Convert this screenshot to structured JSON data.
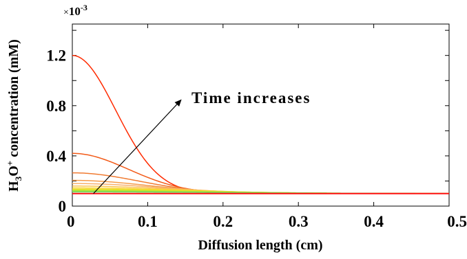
{
  "chart_data": {
    "type": "line",
    "xlabel": "Diffusion length (cm)",
    "ylabel": "H3O+ concentration (mM)",
    "ylabel_parts": {
      "h": "H",
      "sub": "3",
      "o": "O",
      "sup": "+",
      "rest": " concentration (mM)"
    },
    "y_multiplier": "×10-3",
    "y_multiplier_parts": {
      "times": "×",
      "base": "10",
      "exp": "-3"
    },
    "xlim": [
      0,
      0.5
    ],
    "ylim": [
      0,
      1.45
    ],
    "x_ticks": [
      0,
      0.1,
      0.2,
      0.3,
      0.4,
      0.5
    ],
    "x_tick_labels": [
      "0",
      "0.1",
      "0.2",
      "0.3",
      "0.4",
      "0.5"
    ],
    "y_ticks": [
      0,
      0.4,
      0.8,
      1.2
    ],
    "y_tick_labels": [
      "0",
      "0.4",
      "0.8",
      "1.2"
    ],
    "baseline": 0.1,
    "annotation": {
      "text": "Time increases",
      "arrow_from": [
        0.028,
        0.1
      ],
      "arrow_to": [
        0.145,
        0.85
      ]
    },
    "series": [
      {
        "peak": 1.2,
        "width": 0.085,
        "color": "#ff2a00"
      },
      {
        "peak": 0.42,
        "width": 0.11,
        "color": "#f25a18"
      },
      {
        "peak": 0.265,
        "width": 0.13,
        "color": "#f07a30"
      },
      {
        "peak": 0.205,
        "width": 0.15,
        "color": "#f59b4a"
      },
      {
        "peak": 0.18,
        "width": 0.17,
        "color": "#f8b06a"
      },
      {
        "peak": 0.16,
        "width": 0.19,
        "color": "#fbc24c"
      },
      {
        "peak": 0.145,
        "width": 0.21,
        "color": "#f8d530"
      },
      {
        "peak": 0.135,
        "width": 0.23,
        "color": "#eee028"
      },
      {
        "peak": 0.127,
        "width": 0.25,
        "color": "#c8e428"
      },
      {
        "peak": 0.12,
        "width": 0.27,
        "color": "#9fe045"
      },
      {
        "peak": 0.113,
        "width": 0.29,
        "color": "#70d860"
      },
      {
        "peak": 0.1,
        "width": 0.3,
        "color": "#ff1010"
      }
    ]
  }
}
